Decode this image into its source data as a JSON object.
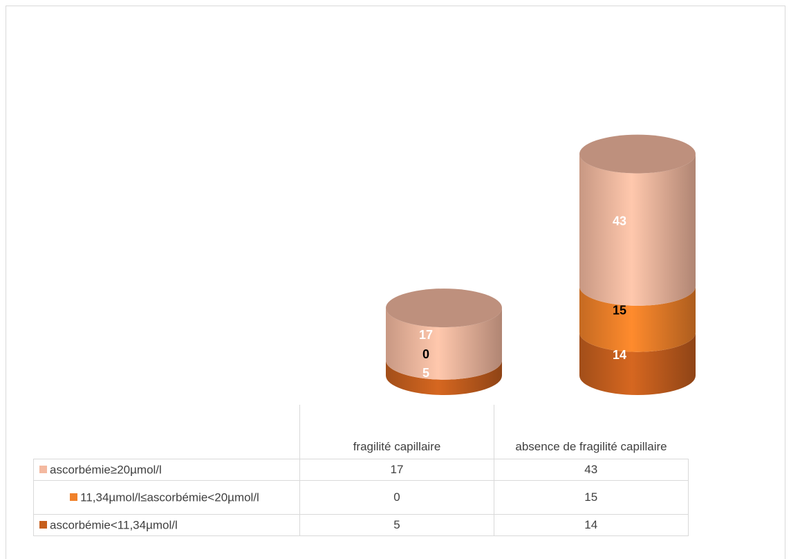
{
  "chart_data": {
    "type": "bar",
    "style": "stacked 3D cylinder",
    "categories": [
      "fragilité capillaire",
      "absence de fragilité capillaire"
    ],
    "series": [
      {
        "name": "ascorbémie<11,34µmol/l",
        "values": [
          5,
          14
        ],
        "color": "#c65f1e",
        "label_color": "#ffffff"
      },
      {
        "name": "11,34µmol/l≤ascorbémie<20µmol/l",
        "values": [
          0,
          15
        ],
        "color": "#f0812a",
        "label_color": "#000000"
      },
      {
        "name": "ascorbémie≥20µmol/l",
        "values": [
          17,
          43
        ],
        "color": "#f4b9a0",
        "label_color": "#ffffff"
      }
    ],
    "legend_placement": "data table (bottom)",
    "table": {
      "columns": [
        "fragilité capillaire",
        "absence de fragilité capillaire"
      ],
      "rows": [
        {
          "series": "ascorbémie≥20µmol/l",
          "values": [
            "17",
            "43"
          ]
        },
        {
          "series": "11,34µmol/l≤ascorbémie<20µmol/l",
          "values": [
            "0",
            "15"
          ]
        },
        {
          "series": "ascorbémie<11,34µmol/l",
          "values": [
            "5",
            "14"
          ]
        }
      ]
    }
  }
}
